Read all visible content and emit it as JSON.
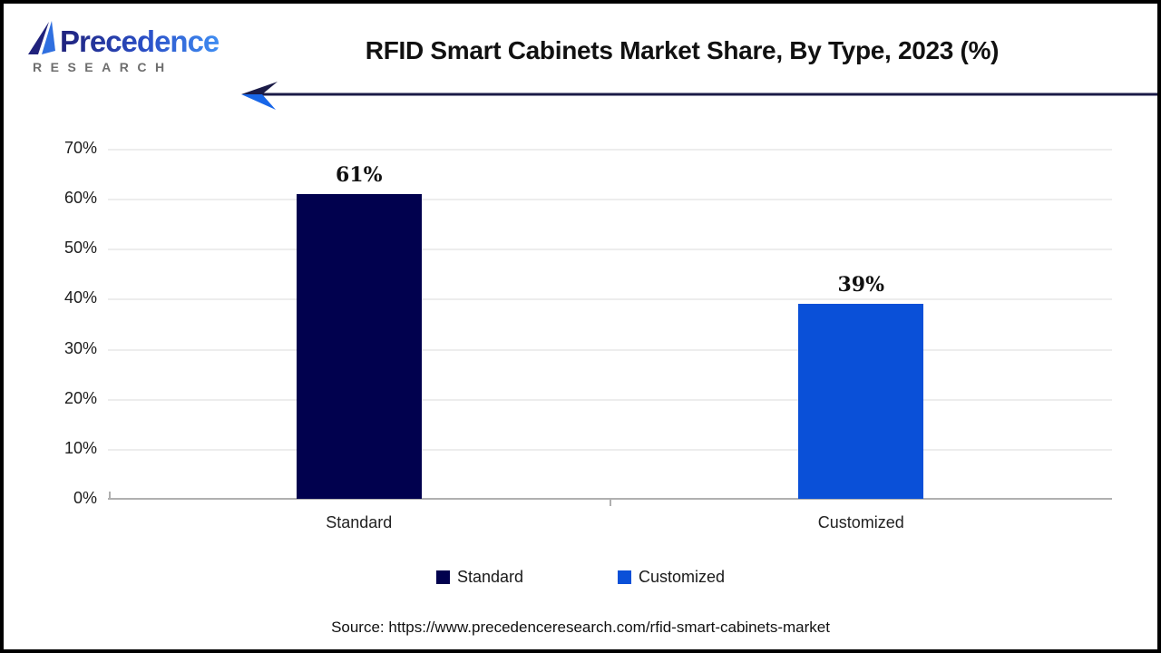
{
  "logo": {
    "brand": "Precedence",
    "subtitle": "RESEARCH"
  },
  "page": {
    "source": "Source: https://www.precedenceresearch.com/rfid-smart-cabinets-market"
  },
  "chart_data": {
    "type": "bar",
    "title": "RFID Smart Cabinets Market Share, By Type, 2023 (%)",
    "categories": [
      "Standard",
      "Customized"
    ],
    "values": [
      61,
      39
    ],
    "value_labels": [
      "61%",
      "39%"
    ],
    "xlabel": "",
    "ylabel": "",
    "ylim": [
      0,
      70
    ],
    "yticks": [
      "70%",
      "60%",
      "50%",
      "40%",
      "30%",
      "20%",
      "10%",
      "0%"
    ],
    "grid": true,
    "legend": [
      "Standard",
      "Customized"
    ],
    "legend_position": "bottom",
    "bar_colors": [
      "#01014e",
      "#0a50d8"
    ],
    "accent_colors": {
      "arrow_line": "#1b1b47",
      "arrow_head_lower": "#1866e8",
      "gridline": "#ededed",
      "axis": "#b0b0b0"
    }
  }
}
